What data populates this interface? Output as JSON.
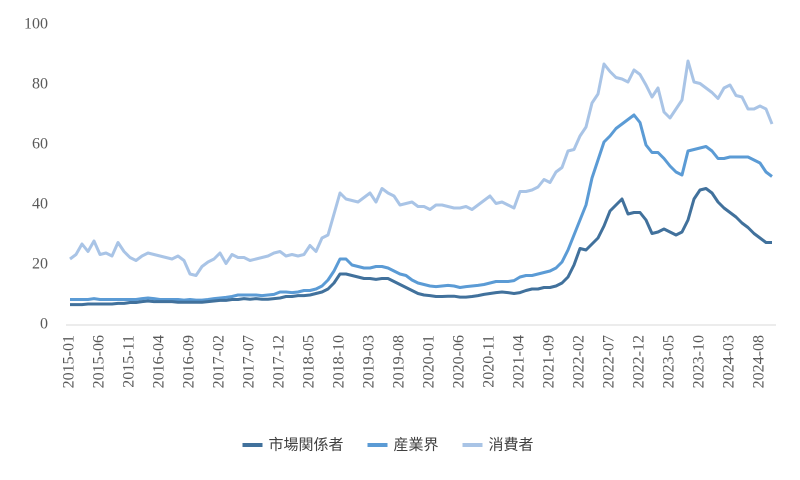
{
  "chart_data": {
    "type": "line",
    "categories": [
      "2015-01",
      null,
      null,
      null,
      null,
      "2015-06",
      null,
      null,
      null,
      null,
      "2015-11",
      null,
      null,
      null,
      null,
      "2016-04",
      null,
      null,
      null,
      null,
      "2016-09",
      null,
      null,
      null,
      null,
      "2017-02",
      null,
      null,
      null,
      null,
      "2017-07",
      null,
      null,
      null,
      null,
      "2017-12",
      null,
      null,
      null,
      null,
      "2018-05",
      null,
      null,
      null,
      null,
      "2018-10",
      null,
      null,
      null,
      null,
      "2019-03",
      null,
      null,
      null,
      null,
      "2019-08",
      null,
      null,
      null,
      null,
      "2020-01",
      null,
      null,
      null,
      null,
      "2020-06",
      null,
      null,
      null,
      null,
      "2020-11",
      null,
      null,
      null,
      null,
      "2021-04",
      null,
      null,
      null,
      null,
      "2021-09",
      null,
      null,
      null,
      null,
      "2022-02",
      null,
      null,
      null,
      null,
      "2022-07",
      null,
      null,
      null,
      null,
      "2022-12",
      null,
      null,
      null,
      null,
      "2023-05",
      null,
      null,
      null,
      null,
      "2023-10",
      null,
      null,
      null,
      null,
      "2024-03",
      null,
      null,
      null,
      null,
      "2024-08",
      null,
      null
    ],
    "series": [
      {
        "name": "市場関係者",
        "color": "#41719c",
        "values": [
          6.8,
          6.8,
          6.8,
          7,
          7,
          7,
          7,
          7,
          7.2,
          7.2,
          7.5,
          7.5,
          7.8,
          8,
          7.8,
          7.8,
          7.8,
          7.8,
          7.6,
          7.6,
          7.6,
          7.6,
          7.6,
          7.8,
          8,
          8.2,
          8.2,
          8.5,
          8.5,
          8.8,
          8.6,
          8.8,
          8.6,
          8.6,
          8.8,
          9,
          9.5,
          9.5,
          9.8,
          9.8,
          10,
          10.5,
          11,
          12,
          14,
          17,
          17,
          16.5,
          16,
          15.5,
          15.5,
          15.2,
          15.5,
          15.5,
          14.5,
          13.5,
          12.5,
          11.5,
          10.5,
          10,
          9.8,
          9.5,
          9.5,
          9.6,
          9.6,
          9.3,
          9.3,
          9.5,
          9.8,
          10.2,
          10.5,
          10.8,
          11,
          10.8,
          10.5,
          10.8,
          11.5,
          12,
          12,
          12.5,
          12.5,
          13,
          14,
          16,
          20,
          25.5,
          25,
          27,
          29,
          33,
          38,
          40,
          42,
          37,
          37.5,
          37.5,
          35,
          30.5,
          31,
          32,
          31,
          30,
          31,
          35,
          42,
          45,
          45.5,
          44,
          41,
          39,
          37.5,
          36,
          34,
          32.5,
          30.5,
          29,
          27.5,
          27.5
        ]
      },
      {
        "name": "産業界",
        "color": "#5b9bd5",
        "values": [
          8.5,
          8.5,
          8.5,
          8.5,
          8.8,
          8.5,
          8.5,
          8.5,
          8.5,
          8.5,
          8.5,
          8.5,
          8.8,
          9,
          8.8,
          8.5,
          8.5,
          8.5,
          8.5,
          8.3,
          8.5,
          8.3,
          8.3,
          8.5,
          8.8,
          9,
          9.2,
          9.5,
          10,
          10,
          10,
          10,
          9.8,
          10,
          10.2,
          11,
          11,
          10.8,
          11,
          11.5,
          11.5,
          12,
          13,
          15,
          18,
          22,
          22,
          20,
          19.5,
          19,
          19,
          19.5,
          19.5,
          19,
          18,
          17,
          16.5,
          15,
          14,
          13.5,
          13,
          12.8,
          13,
          13.2,
          13,
          12.5,
          12.8,
          13,
          13.2,
          13.5,
          14,
          14.5,
          14.5,
          14.5,
          14.8,
          16,
          16.5,
          16.5,
          17,
          17.5,
          18,
          19,
          21,
          25,
          30,
          35,
          40,
          49,
          55,
          61,
          63,
          65.5,
          67,
          68.5,
          70,
          67.5,
          60,
          57.5,
          57.5,
          55.5,
          53,
          51,
          50,
          58,
          58.5,
          59,
          59.5,
          58,
          55.5,
          55.5,
          56,
          56,
          56,
          56,
          55,
          54,
          51,
          49.5
        ]
      },
      {
        "name": "消費者",
        "color": "#a9c4e6",
        "values": [
          22,
          23.5,
          27,
          24.5,
          28,
          23.5,
          24,
          23,
          27.5,
          24.5,
          22.5,
          21.5,
          23,
          24,
          23.5,
          23,
          22.5,
          22,
          23,
          21.5,
          17,
          16.5,
          19.5,
          21,
          22,
          24,
          20.5,
          23.5,
          22.5,
          22.5,
          21.5,
          22,
          22.5,
          23,
          24,
          24.5,
          23,
          23.5,
          23,
          23.5,
          26.5,
          24.5,
          29,
          30,
          37,
          44,
          42,
          41.5,
          41,
          42.5,
          44,
          41,
          45.5,
          44,
          43,
          40,
          40.5,
          41,
          39.5,
          39.5,
          38.5,
          40,
          40,
          39.5,
          39,
          39,
          39.5,
          38.5,
          40,
          41.5,
          43,
          40.5,
          41,
          40,
          39,
          44.5,
          44.5,
          45,
          46,
          48.5,
          47.5,
          51,
          52.5,
          58,
          58.5,
          63,
          66,
          74,
          77,
          87,
          84.5,
          82.5,
          82,
          81,
          85,
          83.5,
          80,
          76,
          79,
          71,
          69,
          72,
          75,
          88,
          81,
          80.5,
          79,
          77.5,
          75.5,
          79,
          80,
          76.5,
          76,
          72,
          72,
          73,
          72,
          67
        ]
      }
    ],
    "ylim": [
      0,
      100
    ],
    "yticks": [
      0,
      20,
      40,
      60,
      80,
      100
    ],
    "grid": false,
    "legend": "bottom"
  }
}
